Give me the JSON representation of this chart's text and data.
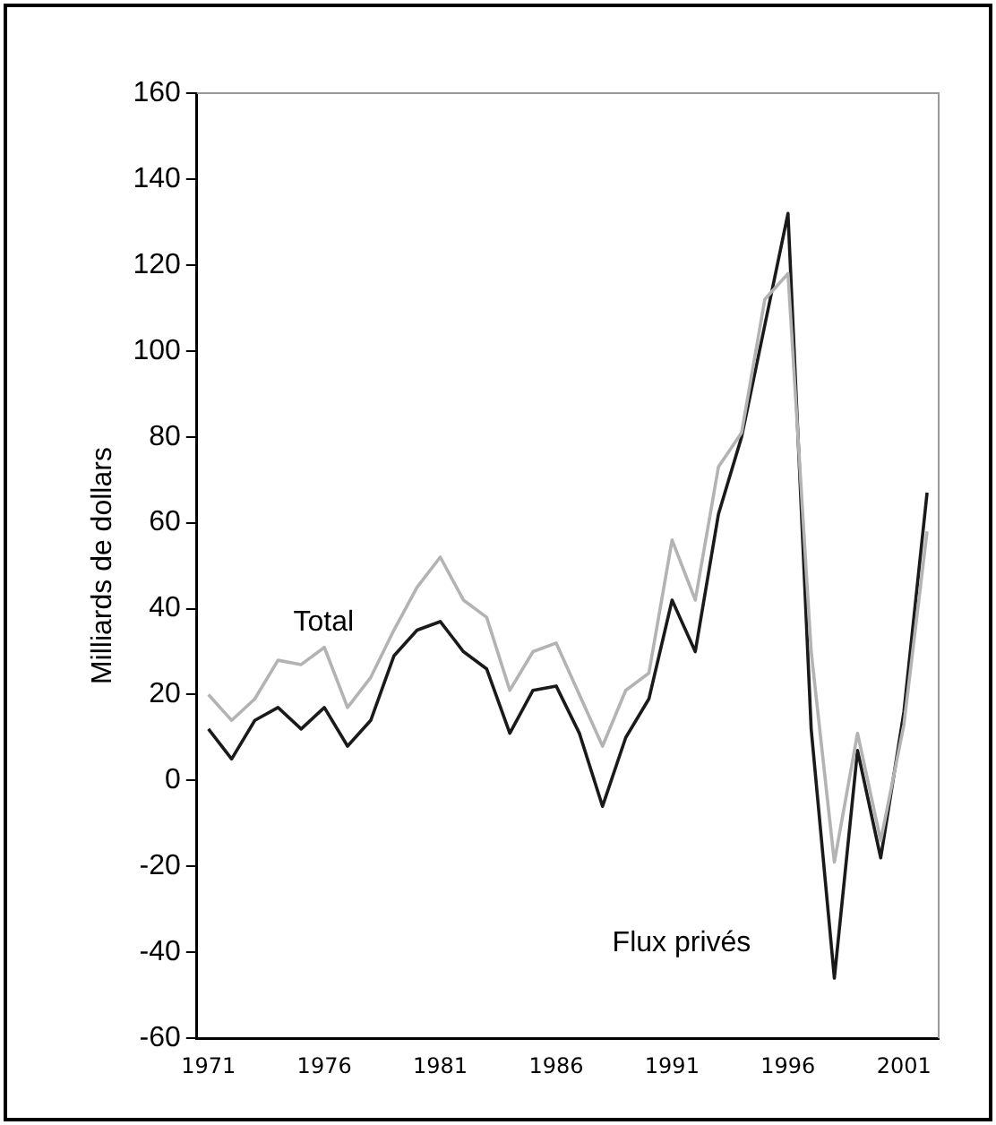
{
  "chart_data": {
    "type": "line",
    "ylabel": "Milliards de dollars",
    "categories": [
      "1971",
      null,
      null,
      null,
      null,
      "1976",
      null,
      null,
      null,
      null,
      "1981",
      null,
      null,
      null,
      null,
      "1986",
      null,
      null,
      null,
      null,
      "1991",
      null,
      null,
      null,
      null,
      "1996",
      null,
      null,
      null,
      null,
      "2001",
      null
    ],
    "series": [
      {
        "name": "Total",
        "color": "#b3b3b3",
        "values": [
          20,
          14,
          19,
          28,
          27,
          31,
          17,
          24,
          35,
          45,
          52,
          42,
          38,
          21,
          30,
          32,
          20,
          8,
          21,
          25,
          56,
          42,
          73,
          81,
          112,
          118,
          30,
          -19,
          11,
          -14,
          13,
          58
        ]
      },
      {
        "name": "Flux privés",
        "color": "#1a1a1a",
        "values": [
          12,
          5,
          14,
          17,
          12,
          17,
          8,
          14,
          29,
          35,
          37,
          30,
          26,
          11,
          21,
          22,
          11,
          -6,
          10,
          19,
          42,
          30,
          62,
          80,
          106,
          132,
          12,
          -46,
          7,
          -18,
          16,
          67
        ]
      }
    ],
    "ylim": [
      -60,
      160
    ],
    "yticks": [
      -60,
      -40,
      -20,
      0,
      20,
      40,
      60,
      80,
      100,
      120,
      140,
      160
    ],
    "grid": false,
    "legend": false,
    "marker": "none",
    "line_style": "solid"
  }
}
